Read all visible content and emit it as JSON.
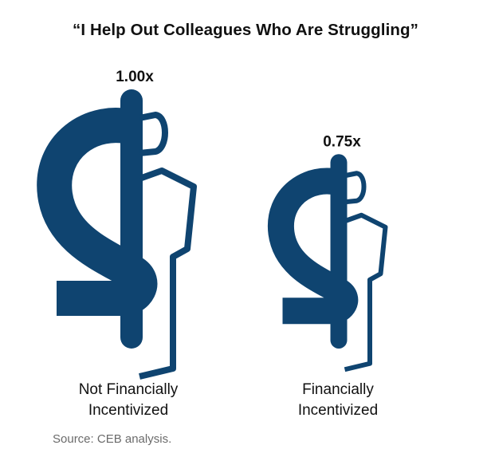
{
  "chart_data": {
    "type": "bar",
    "title": "“I Help Out Colleagues Who Are Struggling”",
    "categories": [
      "Not Financially Incentivized",
      "Financially Incentivized"
    ],
    "category_lines": [
      [
        "Not Financially",
        "Incentivized"
      ],
      [
        "Financially",
        "Incentivized"
      ]
    ],
    "values": [
      1.0,
      0.75
    ],
    "value_labels": [
      "1.00x",
      "0.75x"
    ],
    "source": "Source: CEB analysis.",
    "colors": {
      "mark": "#0f4470",
      "text": "#111111",
      "source": "#6b6b6b"
    }
  }
}
